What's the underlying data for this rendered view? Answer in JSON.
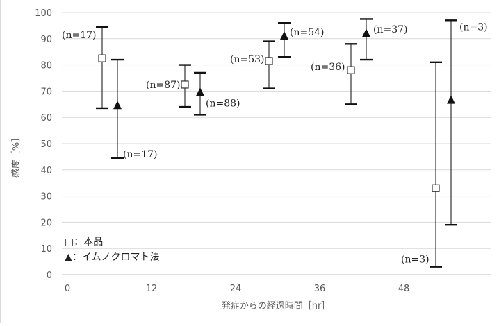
{
  "chart_data": {
    "type": "scatter",
    "ylabel": "感度［%］",
    "xlabel": "発症からの経過時間［hr］",
    "ylim": [
      0,
      100
    ],
    "yticks": [
      "0",
      "10",
      "20",
      "30",
      "40",
      "50",
      "60",
      "70",
      "80",
      "90",
      "100"
    ],
    "xticks": [
      "0",
      "12",
      "24",
      "36",
      "48",
      "—"
    ],
    "grid": true,
    "legend_position": "bottom-left",
    "series": [
      {
        "name": "本品",
        "legend_label": "□：本品",
        "marker": "open-square",
        "points": [
          {
            "group": 0,
            "y": 82.5,
            "low": 63.5,
            "high": 94.5,
            "n_label": "(n=17)"
          },
          {
            "group": 1,
            "y": 72.5,
            "low": 64.0,
            "high": 80.0,
            "n_label": "(n=87)"
          },
          {
            "group": 2,
            "y": 81.5,
            "low": 71.0,
            "high": 89.0,
            "n_label": "(n=53)"
          },
          {
            "group": 3,
            "y": 78.0,
            "low": 65.0,
            "high": 88.0,
            "n_label": "(n=36)"
          },
          {
            "group": 4,
            "y": 33.0,
            "low": 3.0,
            "high": 81.0,
            "n_label": "(n=3)"
          }
        ]
      },
      {
        "name": "イムノクロマト法",
        "legend_label": "▲：イムノクロマト法",
        "marker": "filled-triangle",
        "points": [
          {
            "group": 0,
            "y": 64.5,
            "low": 44.5,
            "high": 82.0,
            "n_label": "(n=17)"
          },
          {
            "group": 1,
            "y": 69.5,
            "low": 61.0,
            "high": 77.0,
            "n_label": "(n=88)"
          },
          {
            "group": 2,
            "y": 91.0,
            "low": 83.0,
            "high": 96.0,
            "n_label": "(n=54)"
          },
          {
            "group": 3,
            "y": 92.0,
            "low": 82.0,
            "high": 97.5,
            "n_label": "(n=37)"
          },
          {
            "group": 4,
            "y": 66.5,
            "low": 19.0,
            "high": 97.0,
            "n_label": "(n=3)"
          }
        ]
      }
    ]
  }
}
